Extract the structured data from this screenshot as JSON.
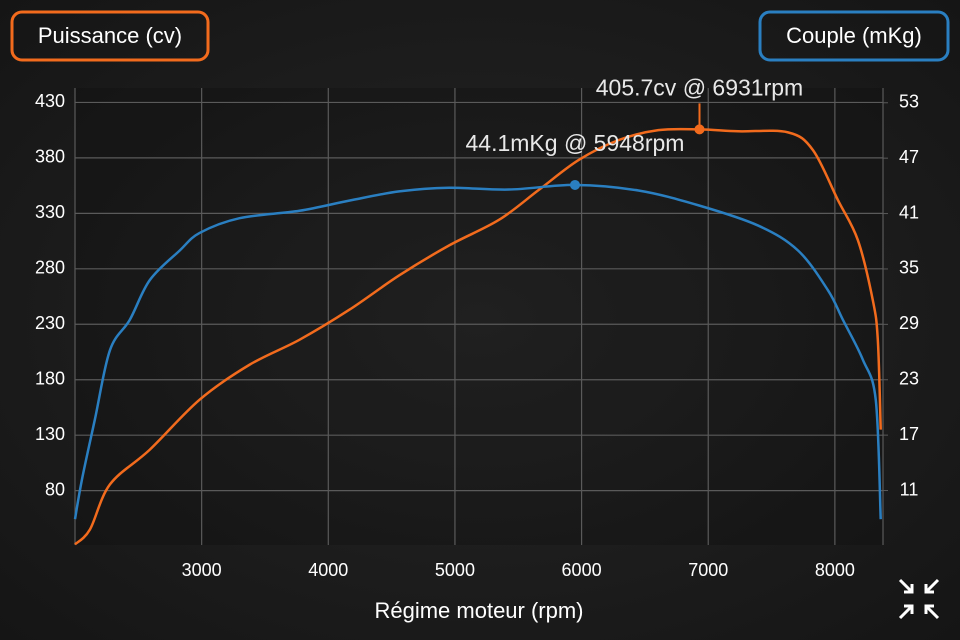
{
  "chart_data": {
    "type": "line",
    "x_label": "Régime moteur (rpm)",
    "xlim": [
      2000,
      8380
    ],
    "xticks": [
      3000,
      4000,
      5000,
      6000,
      7000,
      8000
    ],
    "ylim": [
      31,
      443
    ],
    "yticks": [
      80,
      130,
      180,
      230,
      280,
      330,
      380,
      430
    ],
    "y2lim": [
      5.1,
      54.6
    ],
    "y2ticks": [
      11,
      17,
      23,
      29,
      35,
      41,
      47,
      53
    ],
    "grid": true,
    "series": [
      {
        "name": "Puissance (cv)",
        "color": "#f26b1d",
        "x": [
          2000,
          2118,
          2276,
          2591,
          2984,
          3378,
          3772,
          4165,
          4559,
          4953,
          5346,
          5661,
          5976,
          6291,
          6606,
          6931,
          7236,
          7630,
          7827,
          8024,
          8181,
          8299,
          8339,
          8362
        ],
        "values": [
          31.6,
          45,
          85.6,
          117,
          162,
          193.5,
          216,
          243,
          274,
          301,
          324,
          351,
          378,
          396,
          405,
          405.7,
          404,
          403,
          387,
          342,
          306,
          252,
          216,
          135
        ]
      },
      {
        "name": "Couple (mKg)",
        "color": "#2a7fc1",
        "axis": "y2",
        "x": [
          2000,
          2055,
          2157,
          2276,
          2433,
          2591,
          2827,
          2984,
          3299,
          3772,
          4165,
          4559,
          4953,
          5425,
          5948,
          6449,
          6921,
          7394,
          7709,
          7945,
          8063,
          8220,
          8323,
          8362
        ],
        "values": [
          7.9,
          12.2,
          18.7,
          26.2,
          29.5,
          33.8,
          37.0,
          38.9,
          40.5,
          41.3,
          42.4,
          43.4,
          43.8,
          43.6,
          44.1,
          43.5,
          41.9,
          39.7,
          37.0,
          32.7,
          29.5,
          25.2,
          20.8,
          7.9
        ]
      }
    ],
    "annotations": [
      {
        "text": "405.7cv @ 6931rpm",
        "series": 0,
        "x": 6931,
        "y": 405.7
      },
      {
        "text": "44.1mKg @ 5948rpm",
        "series": 1,
        "x": 5948,
        "y": 44.1
      }
    ]
  }
}
